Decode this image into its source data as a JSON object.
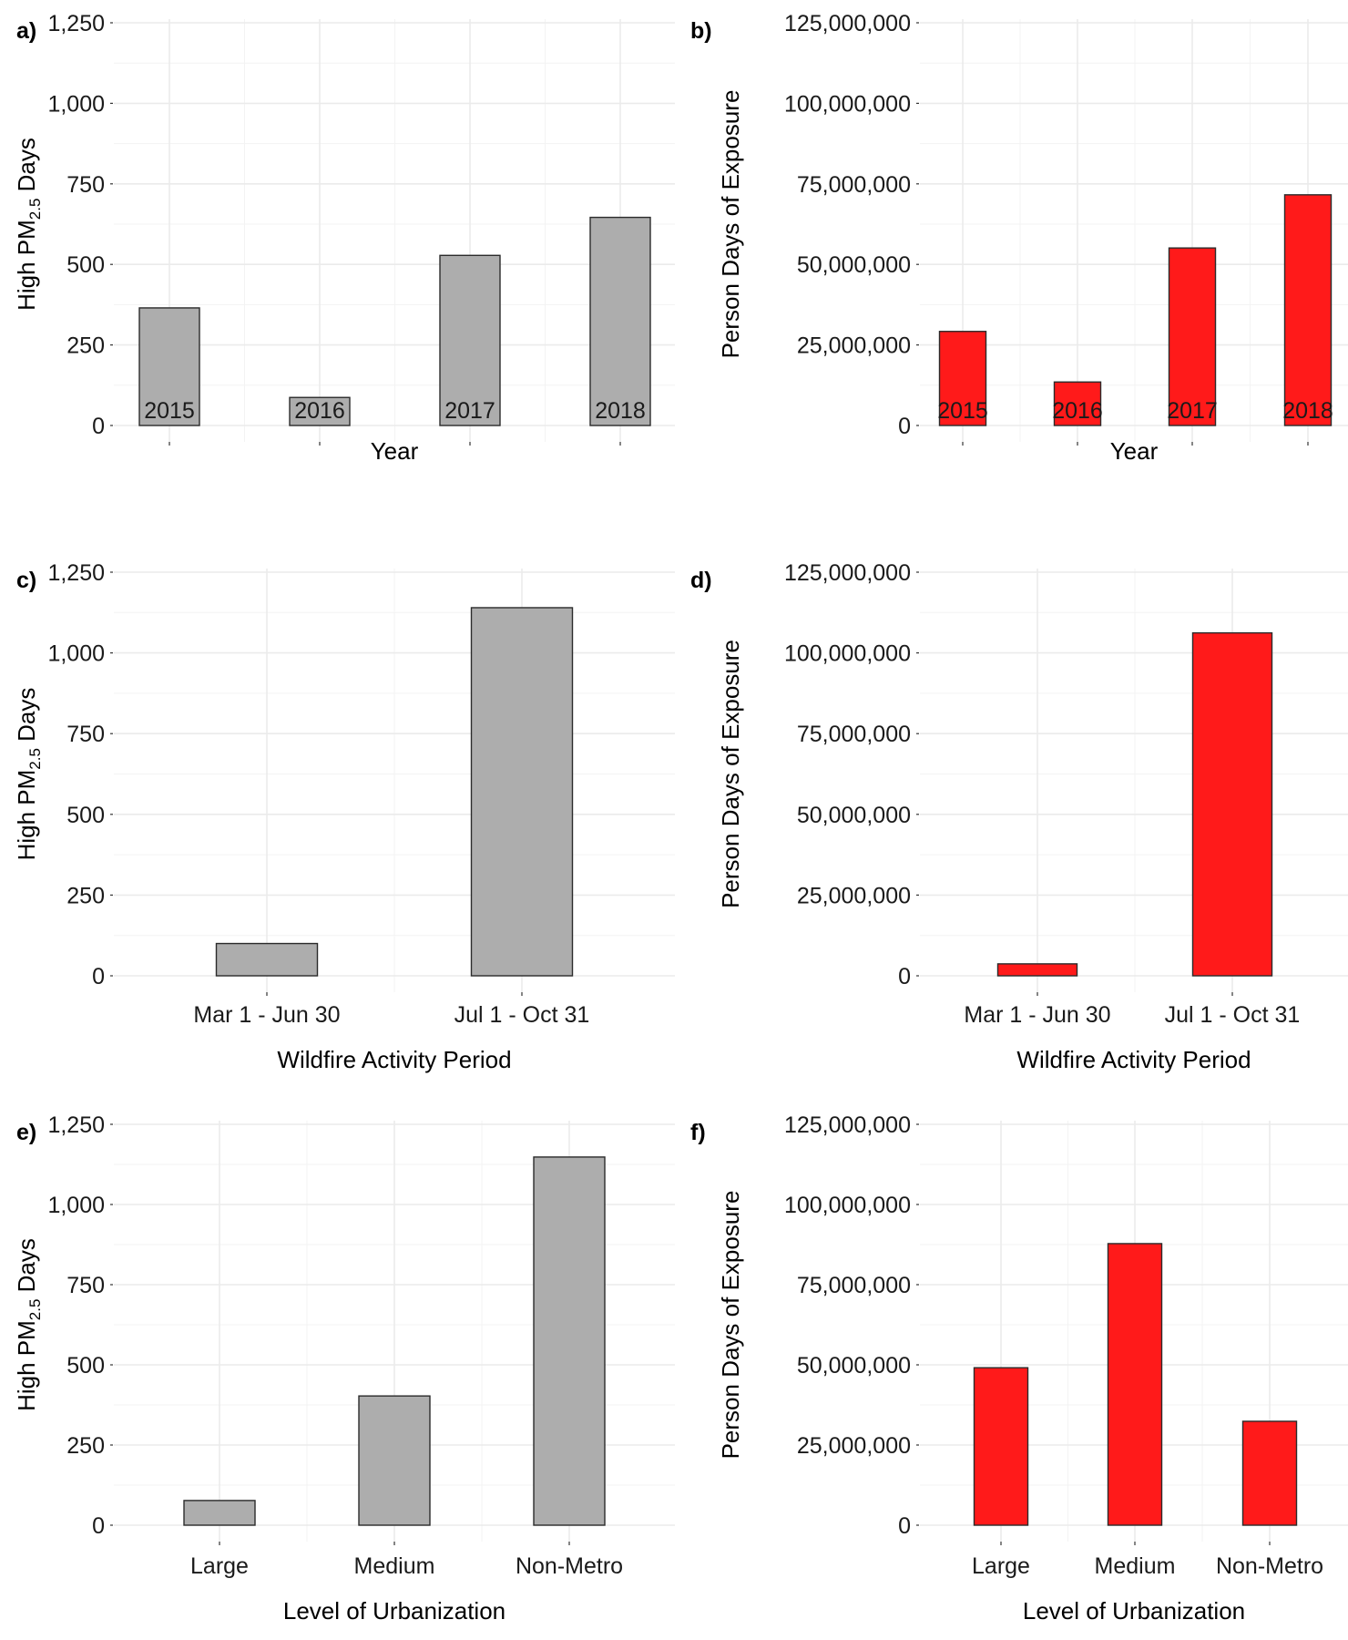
{
  "chart_data": [
    {
      "panel": "a)",
      "type": "bar",
      "categories": [
        "2015",
        "2016",
        "2017",
        "2018"
      ],
      "values": [
        365,
        87,
        528,
        646
      ],
      "xlabel": "Year",
      "ylabel_parts": [
        "High PM",
        "2.5",
        " Days"
      ],
      "ylim": [
        0,
        1250
      ],
      "yticks": [
        0,
        250,
        500,
        750,
        1000,
        1250
      ],
      "ytick_labels": [
        "0",
        "250",
        "500",
        "750",
        "1,000",
        "1,250"
      ],
      "bar_color": "#adadad",
      "grid": true
    },
    {
      "panel": "b)",
      "type": "bar",
      "categories": [
        "2015",
        "2016",
        "2017",
        "2018"
      ],
      "values": [
        29200000,
        13500000,
        55100000,
        71600000
      ],
      "xlabel": "Year",
      "ylabel": "Person Days of Exposure",
      "ylim": [
        0,
        125000000
      ],
      "yticks": [
        0,
        25000000,
        50000000,
        75000000,
        100000000,
        125000000
      ],
      "ytick_labels": [
        "0",
        "25,000,000",
        "50,000,000",
        "75,000,000",
        "100,000,000",
        "125,000,000"
      ],
      "bar_color": "#ff1a1a",
      "grid": true
    },
    {
      "panel": "c)",
      "type": "bar",
      "categories": [
        "Mar 1 - Jun 30",
        "Jul 1 - Oct 31"
      ],
      "values": [
        100,
        1140
      ],
      "xlabel": "Wildfire Activity Period",
      "ylabel_parts": [
        "High PM",
        "2.5",
        " Days"
      ],
      "ylim": [
        0,
        1250
      ],
      "yticks": [
        0,
        250,
        500,
        750,
        1000,
        1250
      ],
      "ytick_labels": [
        "0",
        "250",
        "500",
        "750",
        "1,000",
        "1,250"
      ],
      "bar_color": "#adadad",
      "grid": true
    },
    {
      "panel": "d)",
      "type": "bar",
      "categories": [
        "Mar 1 - Jun 30",
        "Jul 1 - Oct 31"
      ],
      "values": [
        3700000,
        106200000
      ],
      "xlabel": "Wildfire Activity Period",
      "ylabel": "Person Days of Exposure",
      "ylim": [
        0,
        125000000
      ],
      "yticks": [
        0,
        25000000,
        50000000,
        75000000,
        100000000,
        125000000
      ],
      "ytick_labels": [
        "0",
        "25,000,000",
        "50,000,000",
        "75,000,000",
        "100,000,000",
        "125,000,000"
      ],
      "bar_color": "#ff1a1a",
      "grid": true
    },
    {
      "panel": "e)",
      "type": "bar",
      "categories": [
        "Large",
        "Medium",
        "Non-Metro"
      ],
      "values": [
        77,
        403,
        1148
      ],
      "xlabel": "Level of Urbanization",
      "ylabel_parts": [
        "High PM",
        "2.5",
        " Days"
      ],
      "ylim": [
        0,
        1250
      ],
      "yticks": [
        0,
        250,
        500,
        750,
        1000,
        1250
      ],
      "ytick_labels": [
        "0",
        "250",
        "500",
        "750",
        "1,000",
        "1,250"
      ],
      "bar_color": "#adadad",
      "grid": true
    },
    {
      "panel": "f)",
      "type": "bar",
      "categories": [
        "Large",
        "Medium",
        "Non-Metro"
      ],
      "values": [
        49100000,
        87800000,
        32400000
      ],
      "xlabel": "Level of Urbanization",
      "ylabel": "Person Days of Exposure",
      "ylim": [
        0,
        125000000
      ],
      "yticks": [
        0,
        25000000,
        50000000,
        75000000,
        100000000,
        125000000
      ],
      "ytick_labels": [
        "0",
        "25,000,000",
        "50,000,000",
        "75,000,000",
        "100,000,000",
        "125,000,000"
      ],
      "bar_color": "#ff1a1a",
      "grid": true
    }
  ]
}
